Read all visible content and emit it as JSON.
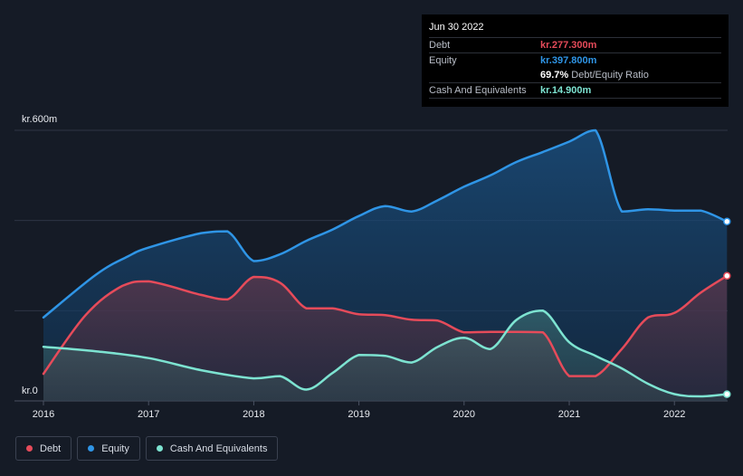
{
  "tooltip": {
    "date": "Jun 30 2022",
    "debt_label": "Debt",
    "debt_value": "kr.277.300m",
    "equity_label": "Equity",
    "equity_value": "kr.397.800m",
    "ratio_value": "69.7%",
    "ratio_label": "Debt/Equity Ratio",
    "cash_label": "Cash And Equivalents",
    "cash_value": "kr.14.900m"
  },
  "legend": {
    "debt": "Debt",
    "equity": "Equity",
    "cash": "Cash And Equivalents"
  },
  "colors": {
    "debt": "#e64b5a",
    "equity": "#2f95e6",
    "cash": "#7de3d1"
  },
  "chart_data": {
    "type": "area",
    "title": "",
    "xlabel": "",
    "ylabel": "",
    "y_axis_labels": [
      "kr.600m",
      "kr.0"
    ],
    "ylim": [
      0,
      600
    ],
    "xlim": [
      2016.0,
      2022.5
    ],
    "x_ticks": [
      2016,
      2017,
      2018,
      2019,
      2020,
      2021,
      2022
    ],
    "x_tick_labels": [
      "2016",
      "2017",
      "2018",
      "2019",
      "2020",
      "2021",
      "2022"
    ],
    "series": [
      {
        "name": "Equity",
        "x": [
          2016.0,
          2016.5,
          2016.8,
          2017.0,
          2017.5,
          2017.75,
          2018.0,
          2018.25,
          2018.5,
          2018.75,
          2019.0,
          2019.25,
          2019.5,
          2019.75,
          2020.0,
          2020.25,
          2020.5,
          2020.75,
          2021.0,
          2021.25,
          2021.5,
          2021.75,
          2022.0,
          2022.25,
          2022.5
        ],
        "values": [
          185,
          280,
          320,
          340,
          372,
          376,
          310,
          325,
          355,
          380,
          410,
          432,
          420,
          445,
          475,
          500,
          530,
          552,
          575,
          600,
          420,
          425,
          422,
          422,
          397.8
        ]
      },
      {
        "name": "Debt",
        "x": [
          2016.0,
          2016.4,
          2016.75,
          2017.0,
          2017.5,
          2017.75,
          2018.0,
          2018.25,
          2018.5,
          2018.75,
          2019.0,
          2019.25,
          2019.5,
          2019.75,
          2020.0,
          2020.25,
          2020.5,
          2020.75,
          2021.0,
          2021.25,
          2021.5,
          2021.75,
          2022.0,
          2022.25,
          2022.5
        ],
        "values": [
          60,
          190,
          255,
          265,
          235,
          225,
          275,
          262,
          205,
          205,
          192,
          190,
          180,
          178,
          152,
          153,
          153,
          152,
          55,
          55,
          115,
          185,
          195,
          240,
          277.3
        ]
      },
      {
        "name": "Cash And Equivalents",
        "x": [
          2016.0,
          2016.5,
          2017.0,
          2017.5,
          2018.0,
          2018.25,
          2018.5,
          2018.75,
          2019.0,
          2019.25,
          2019.5,
          2019.75,
          2020.0,
          2020.25,
          2020.5,
          2020.75,
          2021.0,
          2021.25,
          2021.5,
          2021.75,
          2022.0,
          2022.25,
          2022.5
        ],
        "values": [
          120,
          110,
          95,
          68,
          50,
          55,
          25,
          62,
          102,
          100,
          85,
          120,
          140,
          115,
          180,
          200,
          130,
          100,
          72,
          38,
          15,
          10,
          14.9
        ]
      }
    ]
  }
}
